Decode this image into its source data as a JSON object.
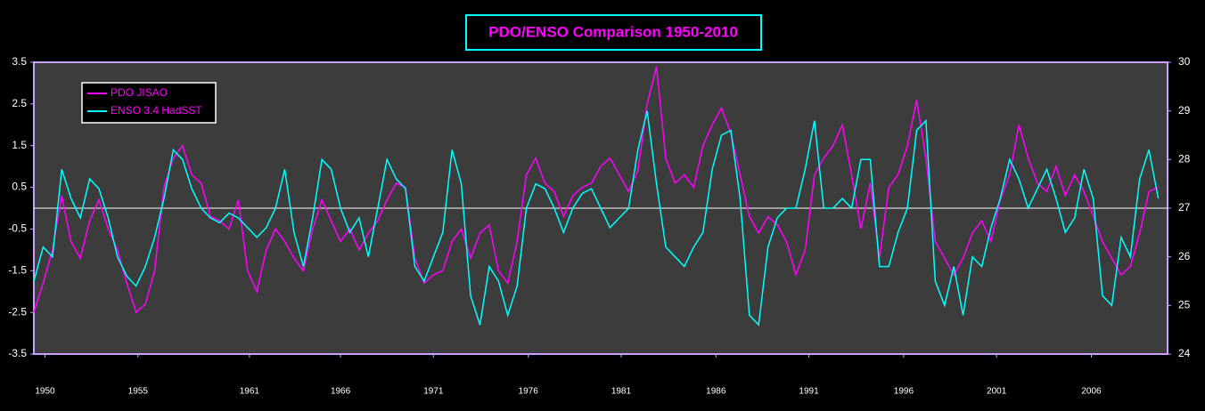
{
  "chart_data": {
    "type": "line",
    "title": "PDO/ENSO Comparison 1950-2010",
    "legend": "upper left",
    "grid": false,
    "x": [
      1950,
      1950.5,
      1951,
      1951.5,
      1952,
      1952.5,
      1953,
      1953.5,
      1954,
      1954.5,
      1955,
      1955.5,
      1956,
      1956.5,
      1957,
      1957.5,
      1958,
      1958.5,
      1959,
      1959.5,
      1960,
      1960.5,
      1961,
      1961.5,
      1962,
      1962.5,
      1963,
      1963.5,
      1964,
      1964.5,
      1965,
      1965.5,
      1966,
      1966.5,
      1967,
      1967.5,
      1968,
      1968.5,
      1969,
      1969.5,
      1970,
      1970.5,
      1971,
      1971.5,
      1972,
      1972.5,
      1973,
      1973.5,
      1974,
      1974.5,
      1975,
      1975.5,
      1976,
      1976.5,
      1977,
      1977.5,
      1978,
      1978.5,
      1979,
      1979.5,
      1980,
      1980.5,
      1981,
      1981.5,
      1982,
      1982.5,
      1983,
      1983.5,
      1984,
      1984.5,
      1985,
      1985.5,
      1986,
      1986.5,
      1987,
      1987.5,
      1988,
      1988.5,
      1989,
      1989.5,
      1990,
      1990.5,
      1991,
      1991.5,
      1992,
      1992.5,
      1993,
      1993.5,
      1994,
      1994.5,
      1995,
      1995.5,
      1996,
      1996.5,
      1997,
      1997.5,
      1998,
      1998.5,
      1999,
      1999.5,
      2000,
      2000.5,
      2001,
      2001.5,
      2002,
      2002.5,
      2003,
      2003.5,
      2004,
      2004.5,
      2005,
      2005.5,
      2006,
      2006.5,
      2007,
      2007.5,
      2008,
      2008.5,
      2009,
      2009.5,
      2010,
      2010.5
    ],
    "series": [
      {
        "name": "PDO JISAO",
        "color": "#ff00ff",
        "axis": "y",
        "values": [
          -2.5,
          -1.8,
          -1.0,
          0.3,
          -0.8,
          -1.2,
          -0.3,
          0.2,
          -0.5,
          -1.0,
          -1.8,
          -2.5,
          -2.3,
          -1.5,
          0.5,
          1.2,
          1.5,
          0.8,
          0.6,
          -0.2,
          -0.3,
          -0.5,
          0.2,
          -1.5,
          -2.0,
          -1.0,
          -0.5,
          -0.8,
          -1.2,
          -1.5,
          -0.5,
          0.2,
          -0.3,
          -0.8,
          -0.5,
          -1.0,
          -0.6,
          -0.3,
          0.2,
          0.6,
          0.5,
          -1.2,
          -1.8,
          -1.6,
          -1.5,
          -0.8,
          -0.5,
          -1.2,
          -0.6,
          -0.4,
          -1.5,
          -1.8,
          -0.8,
          0.8,
          1.2,
          0.6,
          0.4,
          -0.2,
          0.3,
          0.5,
          0.6,
          1.0,
          1.2,
          0.8,
          0.4,
          0.9,
          2.5,
          3.4,
          1.2,
          0.6,
          0.8,
          0.5,
          1.5,
          2.0,
          2.4,
          1.8,
          0.8,
          -0.2,
          -0.6,
          -0.2,
          -0.4,
          -0.8,
          -1.6,
          -1.0,
          0.8,
          1.2,
          1.5,
          2.0,
          0.8,
          -0.5,
          0.6,
          -1.2,
          0.5,
          0.8,
          1.5,
          2.6,
          1.2,
          -0.8,
          -1.2,
          -1.6,
          -1.2,
          -0.6,
          -0.3,
          -0.8,
          0.2,
          0.8,
          2.0,
          1.2,
          0.6,
          0.4,
          1.0,
          0.3,
          0.8,
          0.4,
          -0.2,
          -0.8,
          -1.2,
          -1.6,
          -1.4,
          -0.6,
          0.4,
          0.5
        ]
      },
      {
        "name": "ENSO 3.4 HadSST",
        "color": "#00ffff",
        "axis": "y2",
        "values": [
          25.5,
          26.2,
          26.0,
          27.8,
          27.2,
          26.8,
          27.6,
          27.4,
          26.8,
          26.0,
          25.6,
          25.4,
          25.8,
          26.4,
          27.2,
          28.2,
          28.0,
          27.4,
          27.0,
          26.8,
          26.7,
          26.9,
          26.8,
          26.6,
          26.4,
          26.6,
          27.0,
          27.8,
          26.5,
          25.8,
          26.8,
          28.0,
          27.8,
          27.0,
          26.5,
          26.8,
          26.0,
          27.0,
          28.0,
          27.6,
          27.4,
          25.8,
          25.5,
          26.0,
          26.5,
          28.2,
          27.5,
          25.2,
          24.6,
          25.8,
          25.5,
          24.8,
          25.4,
          27.0,
          27.5,
          27.4,
          27.0,
          26.5,
          27.0,
          27.3,
          27.4,
          27.0,
          26.6,
          26.8,
          27.0,
          28.2,
          29.0,
          27.5,
          26.2,
          26.0,
          25.8,
          26.2,
          26.5,
          27.8,
          28.5,
          28.6,
          27.2,
          24.8,
          24.6,
          26.2,
          26.8,
          27.0,
          27.0,
          27.8,
          28.8,
          27.0,
          27.0,
          27.2,
          27.0,
          28.0,
          28.0,
          25.8,
          25.8,
          26.5,
          27.0,
          28.6,
          28.8,
          25.5,
          25.0,
          25.8,
          24.8,
          26.0,
          25.8,
          26.6,
          27.2,
          28.0,
          27.6,
          27.0,
          27.4,
          27.8,
          27.2,
          26.5,
          26.8,
          27.8,
          27.2,
          25.2,
          25.0,
          26.4,
          26.0,
          27.6,
          28.2,
          27.2
        ]
      }
    ],
    "xlim": [
      1950,
      2011
    ],
    "xticks": [
      {
        "value": 1950.6,
        "label": "1950"
      },
      {
        "value": 1955.6,
        "label": "1955"
      },
      {
        "value": 1961.6,
        "label": "1961"
      },
      {
        "value": 1966.5,
        "label": "1966"
      },
      {
        "value": 1971.5,
        "label": "1971"
      },
      {
        "value": 1976.6,
        "label": "1976"
      },
      {
        "value": 1981.6,
        "label": "1981"
      },
      {
        "value": 1986.7,
        "label": "1986"
      },
      {
        "value": 1991.7,
        "label": "1991"
      },
      {
        "value": 1996.8,
        "label": "1996"
      },
      {
        "value": 2001.8,
        "label": "2001"
      },
      {
        "value": 2006.9,
        "label": "2006"
      }
    ],
    "ylim": [
      -3.5,
      3.5
    ],
    "yticks": [
      -3.5,
      -2.5,
      -1.5,
      -0.5,
      0.5,
      1.5,
      2.5,
      3.5
    ],
    "y2lim": [
      24,
      30
    ],
    "y2ticks": [
      24,
      25,
      26,
      27,
      28,
      29,
      30
    ]
  }
}
